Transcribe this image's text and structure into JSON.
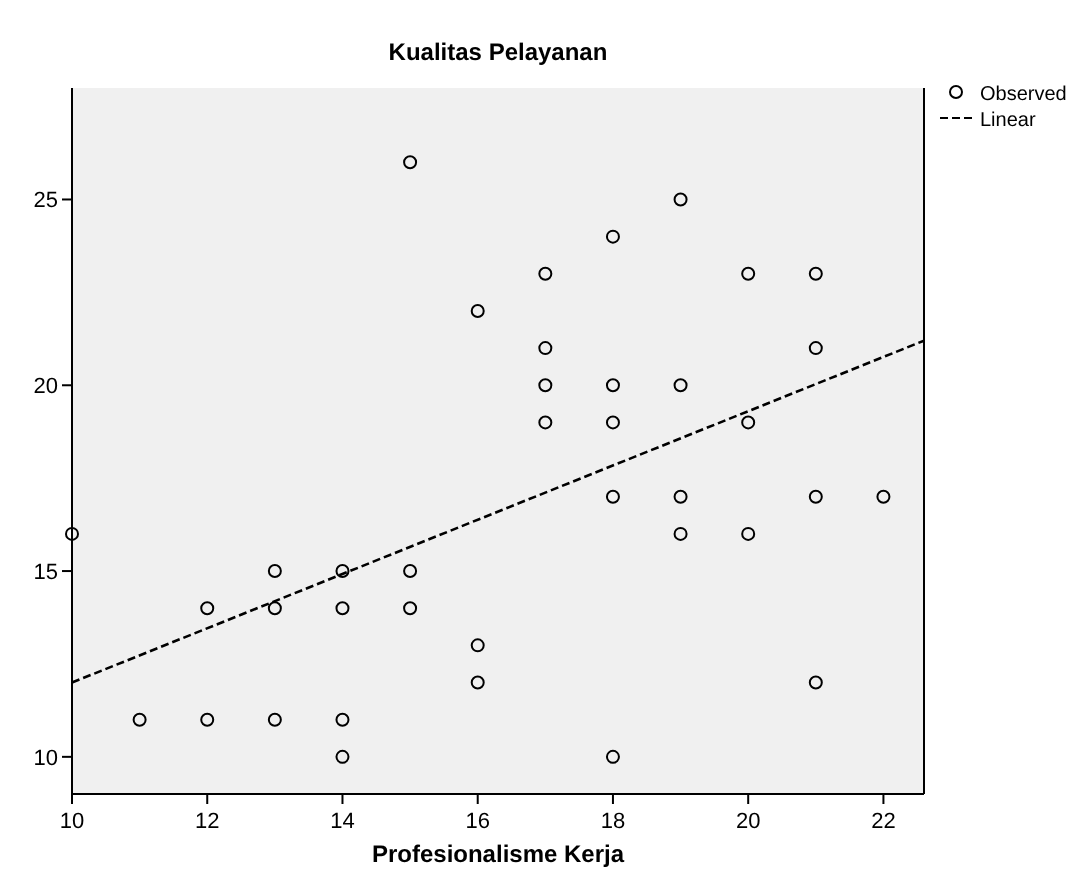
{
  "chart_data": {
    "type": "scatter",
    "title": "Kualitas Pelayanan",
    "xlabel": "Profesionalisme Kerja",
    "xlim": [
      10,
      22.6
    ],
    "ylim": [
      9,
      28
    ],
    "xticks": [
      10,
      12,
      14,
      16,
      18,
      20,
      22
    ],
    "yticks": [
      10,
      15,
      20,
      25
    ],
    "grid": false,
    "legend": "top right",
    "series": [
      {
        "name": "Observed",
        "marker": "circle",
        "color": "#000000",
        "x": [
          15,
          19,
          18,
          17,
          20,
          21,
          16,
          17,
          21,
          17,
          18,
          19,
          17,
          18,
          20,
          18,
          19,
          21,
          22,
          19,
          20,
          10,
          13,
          14,
          15,
          12,
          13,
          14,
          15,
          16,
          16,
          21,
          11,
          12,
          13,
          14,
          14,
          18
        ],
        "values": [
          26,
          25,
          24,
          23,
          23,
          23,
          22,
          21,
          21,
          20,
          20,
          20,
          19,
          19,
          19,
          17,
          17,
          17,
          17,
          16,
          16,
          16,
          15,
          15,
          15,
          14,
          14,
          14,
          14,
          13,
          12,
          12,
          11,
          11,
          11,
          11,
          10,
          10
        ]
      },
      {
        "name": "Linear",
        "type": "line",
        "marker": "none",
        "line_style": "dashed",
        "color": "#000000",
        "x": [
          10,
          22.6
        ],
        "values": [
          12,
          21.2
        ]
      }
    ]
  }
}
